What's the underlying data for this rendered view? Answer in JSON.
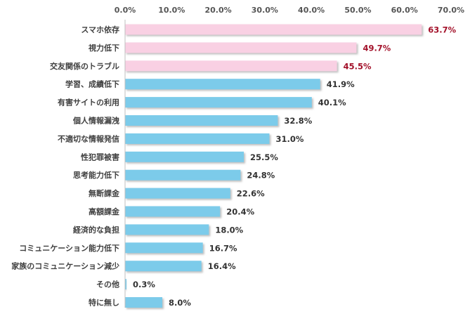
{
  "chart_data": {
    "type": "bar",
    "orientation": "horizontal",
    "title": "",
    "xlabel": "",
    "ylabel": "",
    "xlim": [
      0,
      70
    ],
    "x_ticks": [
      "0.0%",
      "10.0%",
      "20.0%",
      "30.0%",
      "40.0%",
      "50.0%",
      "60.0%",
      "70.0%"
    ],
    "x_tick_values": [
      0,
      10,
      20,
      30,
      40,
      50,
      60,
      70
    ],
    "axis_position": "top",
    "grid": false,
    "legend": "none",
    "categories": [
      "スマホ依存",
      "視力低下",
      "交友関係のトラブル",
      "学習、成績低下",
      "有害サイトの利用",
      "個人情報漏洩",
      "不適切な情報発信",
      "性犯罪被害",
      "思考能力低下",
      "無断課金",
      "高額課金",
      "経済的な負担",
      "コミュニケーション能力低下",
      "家族のコミュニケーション減少",
      "その他",
      "特に無し"
    ],
    "values": [
      63.7,
      49.7,
      45.5,
      41.9,
      40.1,
      32.8,
      31.0,
      25.5,
      24.8,
      22.6,
      20.4,
      18.0,
      16.7,
      16.4,
      0.3,
      8.0
    ],
    "value_labels": [
      "63.7%",
      "49.7%",
      "45.5%",
      "41.9%",
      "40.1%",
      "32.8%",
      "31.0%",
      "25.5%",
      "24.8%",
      "22.6%",
      "20.4%",
      "18.0%",
      "16.7%",
      "16.4%",
      "0.3%",
      "8.0%"
    ],
    "highlight_count": 3,
    "colors": {
      "highlight_bar": "#f9d0e3",
      "normal_bar": "#7ccbea",
      "highlight_label": "#a3112a",
      "normal_label": "#333333",
      "axis": "#bfbfbf",
      "bar_shadow": "#9a9a9a"
    }
  }
}
